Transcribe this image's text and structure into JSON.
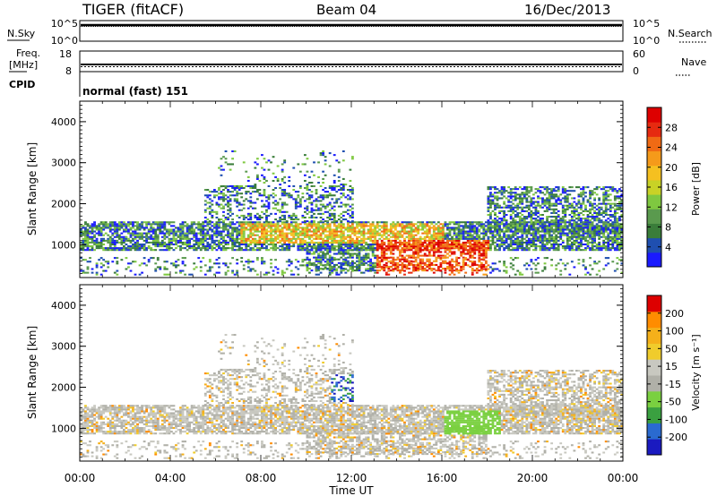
{
  "header": {
    "title": "TIGER (fitACF)",
    "beam": "Beam 04",
    "date": "16/Dec/2013"
  },
  "left_labels": {
    "nsky": "N.Sky",
    "freq": "Freq.",
    "freq_unit": "[MHz]",
    "cpid": "CPID"
  },
  "right_labels": {
    "nsearch": "N.Search",
    "nave": "Nave"
  },
  "cpid_text": "normal (fast) 151",
  "noise_ticks": {
    "top": "10^5",
    "bottom": "10^0"
  },
  "freq_ticks": {
    "left_top": "18",
    "left_bottom": "8",
    "right_top": "60",
    "right_bottom": "0"
  },
  "colors": {
    "power_scale": [
      "#1a1aff",
      "#1f4fb0",
      "#3a7d3a",
      "#5a9a4e",
      "#7fc840",
      "#c8d226",
      "#f5c020",
      "#f59a1a",
      "#f06a14",
      "#e62a10",
      "#dd0000"
    ],
    "velocity_scale": [
      "#dd0000",
      "#ff8c00",
      "#f5b01a",
      "#f0cc2c",
      "#c8c8c0",
      "#b0b0a8",
      "#7ad040",
      "#3aa040",
      "#2a6ad0",
      "#1a1ac0"
    ]
  },
  "chart_data": [
    {
      "type": "heatmap",
      "name": "power",
      "ylabel": "Slant Range [km]",
      "ylim": [
        200,
        4500
      ],
      "yticks": [
        "1000",
        "2000",
        "3000",
        "4000"
      ],
      "colorbar": {
        "label": "Power [dB]",
        "ticks": [
          "4",
          "8",
          "12",
          "16",
          "20",
          "24",
          "28"
        ],
        "range": [
          0,
          30
        ]
      }
    },
    {
      "type": "heatmap",
      "name": "velocity",
      "ylabel": "Slant Range [km]",
      "ylim": [
        200,
        4500
      ],
      "yticks": [
        "1000",
        "2000",
        "3000",
        "4000"
      ],
      "xlabel": "Time UT",
      "xticks": [
        "00:00",
        "04:00",
        "08:00",
        "12:00",
        "16:00",
        "20:00",
        "00:00"
      ],
      "colorbar": {
        "label": "Velocity [m s⁻¹]",
        "ticks": [
          "200",
          "100",
          "50",
          "15",
          "-15",
          "-50",
          "-100",
          "-200"
        ]
      }
    }
  ]
}
